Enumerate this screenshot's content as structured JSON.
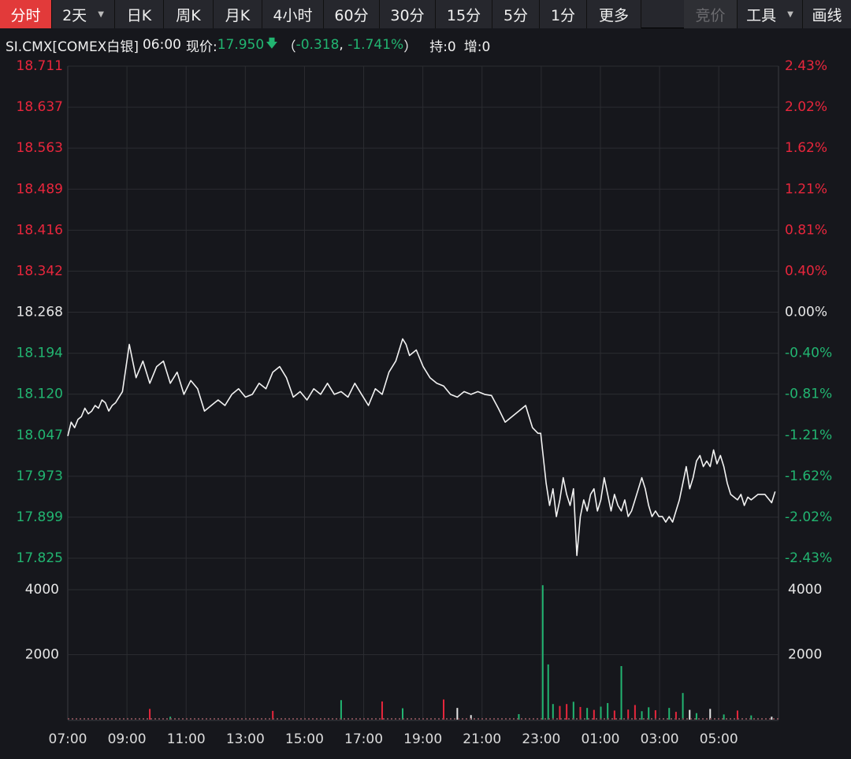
{
  "toolbar": {
    "tabs": [
      {
        "label": "分时",
        "active": true
      },
      {
        "label": "2天",
        "dropdown": true
      },
      {
        "label": "日K"
      },
      {
        "label": "周K"
      },
      {
        "label": "月K"
      },
      {
        "label": "4小时"
      },
      {
        "label": "60分"
      },
      {
        "label": "30分"
      },
      {
        "label": "15分"
      },
      {
        "label": "5分"
      },
      {
        "label": "1分"
      },
      {
        "label": "更多"
      }
    ],
    "right_tabs": [
      {
        "label": "竞价",
        "disabled": true
      },
      {
        "label": "工具",
        "dropdown": true
      },
      {
        "label": "画线"
      }
    ]
  },
  "quote": {
    "symbol": "SI.CMX[COMEX白银]",
    "time": "06:00",
    "price_label": "现价:",
    "price": "17.950",
    "arrow": "down-arrow-icon",
    "change": "-0.318",
    "change_pct": "-1.741%",
    "open_interest": "持:0",
    "increase": "增:0"
  },
  "colors": {
    "up": "#e8263c",
    "down": "#22b571",
    "neutral": "#e6e6e6",
    "line": "#f2f2f2",
    "grid": "#2b2c31",
    "background": "#16171c"
  },
  "chart_data": {
    "type": "line",
    "price_axis": {
      "left_ticks": [
        "18.711",
        "18.637",
        "18.563",
        "18.489",
        "18.416",
        "18.342",
        "18.268",
        "18.194",
        "18.120",
        "18.047",
        "17.973",
        "17.899",
        "17.825"
      ],
      "right_ticks": [
        "2.43%",
        "2.02%",
        "1.62%",
        "1.21%",
        "0.81%",
        "0.40%",
        "0.00%",
        "-0.40%",
        "-0.81%",
        "-1.21%",
        "-1.62%",
        "-2.02%",
        "-2.43%"
      ],
      "prev_close": 18.268,
      "ylim": [
        17.825,
        18.711
      ]
    },
    "volume_axis": {
      "ticks": [
        "4000",
        "2000"
      ],
      "ylim": [
        0,
        4800
      ]
    },
    "x_ticks": [
      "07:00",
      "09:00",
      "11:00",
      "13:00",
      "15:00",
      "17:00",
      "19:00",
      "21:00",
      "23:00",
      "01:00",
      "03:00",
      "05:00"
    ],
    "price_series": [
      [
        0,
        18.045
      ],
      [
        0.5,
        18.07
      ],
      [
        1,
        18.06
      ],
      [
        1.5,
        18.075
      ],
      [
        2,
        18.08
      ],
      [
        2.5,
        18.095
      ],
      [
        3,
        18.085
      ],
      [
        3.5,
        18.09
      ],
      [
        4,
        18.1
      ],
      [
        4.5,
        18.095
      ],
      [
        5,
        18.11
      ],
      [
        5.5,
        18.105
      ],
      [
        6,
        18.09
      ],
      [
        6.5,
        18.1
      ],
      [
        7,
        18.105
      ],
      [
        7.5,
        18.115
      ],
      [
        8,
        18.125
      ],
      [
        9,
        18.21
      ],
      [
        9.5,
        18.18
      ],
      [
        10,
        18.15
      ],
      [
        11,
        18.18
      ],
      [
        12,
        18.14
      ],
      [
        13,
        18.17
      ],
      [
        14,
        18.18
      ],
      [
        15,
        18.14
      ],
      [
        16,
        18.16
      ],
      [
        17,
        18.12
      ],
      [
        18,
        18.145
      ],
      [
        19,
        18.13
      ],
      [
        20,
        18.09
      ],
      [
        21,
        18.1
      ],
      [
        22,
        18.11
      ],
      [
        23,
        18.1
      ],
      [
        24,
        18.12
      ],
      [
        25,
        18.13
      ],
      [
        26,
        18.115
      ],
      [
        27,
        18.12
      ],
      [
        28,
        18.14
      ],
      [
        29,
        18.13
      ],
      [
        30,
        18.16
      ],
      [
        31,
        18.17
      ],
      [
        32,
        18.15
      ],
      [
        33,
        18.115
      ],
      [
        34,
        18.125
      ],
      [
        35,
        18.11
      ],
      [
        36,
        18.13
      ],
      [
        37,
        18.12
      ],
      [
        38,
        18.14
      ],
      [
        39,
        18.12
      ],
      [
        40,
        18.125
      ],
      [
        41,
        18.115
      ],
      [
        42,
        18.14
      ],
      [
        43,
        18.12
      ],
      [
        44,
        18.1
      ],
      [
        45,
        18.13
      ],
      [
        46,
        18.12
      ],
      [
        47,
        18.16
      ],
      [
        48,
        18.18
      ],
      [
        49,
        18.22
      ],
      [
        49.5,
        18.21
      ],
      [
        50,
        18.19
      ],
      [
        51,
        18.2
      ],
      [
        52,
        18.17
      ],
      [
        53,
        18.15
      ],
      [
        54,
        18.14
      ],
      [
        55,
        18.135
      ],
      [
        56,
        18.12
      ],
      [
        57,
        18.115
      ],
      [
        58,
        18.125
      ],
      [
        59,
        18.12
      ],
      [
        60,
        18.125
      ],
      [
        61,
        18.12
      ],
      [
        62,
        18.118
      ],
      [
        63,
        18.095
      ],
      [
        64,
        18.07
      ],
      [
        65,
        18.08
      ],
      [
        66,
        18.09
      ],
      [
        67,
        18.1
      ],
      [
        67.5,
        18.08
      ],
      [
        68,
        18.06
      ],
      [
        68.8,
        18.05
      ],
      [
        69.2,
        18.05
      ],
      [
        70,
        17.96
      ],
      [
        70.5,
        17.92
      ],
      [
        71,
        17.95
      ],
      [
        71.5,
        17.9
      ],
      [
        72,
        17.93
      ],
      [
        72.5,
        17.97
      ],
      [
        73,
        17.94
      ],
      [
        73.5,
        17.92
      ],
      [
        74,
        17.95
      ],
      [
        74.5,
        17.83
      ],
      [
        75,
        17.9
      ],
      [
        75.5,
        17.93
      ],
      [
        76,
        17.91
      ],
      [
        76.5,
        17.94
      ],
      [
        77,
        17.95
      ],
      [
        77.5,
        17.91
      ],
      [
        78,
        17.93
      ],
      [
        78.5,
        17.97
      ],
      [
        79,
        17.94
      ],
      [
        79.5,
        17.91
      ],
      [
        80,
        17.94
      ],
      [
        80.5,
        17.92
      ],
      [
        81,
        17.91
      ],
      [
        81.5,
        17.93
      ],
      [
        82,
        17.9
      ],
      [
        82.5,
        17.91
      ],
      [
        83,
        17.93
      ],
      [
        83.5,
        17.95
      ],
      [
        84,
        17.97
      ],
      [
        84.5,
        17.95
      ],
      [
        85,
        17.92
      ],
      [
        85.5,
        17.9
      ],
      [
        86,
        17.91
      ],
      [
        86.5,
        17.9
      ],
      [
        87,
        17.9
      ],
      [
        87.5,
        17.89
      ],
      [
        88,
        17.9
      ],
      [
        88.5,
        17.89
      ],
      [
        89,
        17.91
      ],
      [
        89.5,
        17.93
      ],
      [
        90,
        17.96
      ],
      [
        90.5,
        17.99
      ],
      [
        91,
        17.95
      ],
      [
        91.5,
        17.97
      ],
      [
        92,
        18.0
      ],
      [
        92.5,
        18.01
      ],
      [
        93,
        17.99
      ],
      [
        93.5,
        18.0
      ],
      [
        94,
        17.99
      ],
      [
        94.5,
        18.02
      ],
      [
        95,
        17.995
      ],
      [
        95.5,
        18.01
      ],
      [
        96,
        17.99
      ],
      [
        96.5,
        17.96
      ],
      [
        97,
        17.94
      ],
      [
        97.5,
        17.935
      ],
      [
        98,
        17.93
      ],
      [
        98.5,
        17.94
      ],
      [
        99,
        17.92
      ],
      [
        99.5,
        17.935
      ],
      [
        100,
        17.93
      ],
      [
        101,
        17.94
      ],
      [
        102,
        17.94
      ],
      [
        103,
        17.925
      ],
      [
        103.5,
        17.945
      ]
    ],
    "volume_bars": [
      {
        "t": 12,
        "v": 330,
        "dir": "up"
      },
      {
        "t": 15,
        "v": 90,
        "dir": "down"
      },
      {
        "t": 30,
        "v": 270,
        "dir": "up"
      },
      {
        "t": 40,
        "v": 600,
        "dir": "down"
      },
      {
        "t": 46,
        "v": 560,
        "dir": "up"
      },
      {
        "t": 49,
        "v": 350,
        "dir": "down"
      },
      {
        "t": 55,
        "v": 620,
        "dir": "up"
      },
      {
        "t": 57,
        "v": 360,
        "dir": "neutral"
      },
      {
        "t": 59,
        "v": 140,
        "dir": "neutral"
      },
      {
        "t": 66,
        "v": 170,
        "dir": "down"
      },
      {
        "t": 69.5,
        "v": 4140,
        "dir": "down"
      },
      {
        "t": 70.3,
        "v": 1700,
        "dir": "down"
      },
      {
        "t": 71,
        "v": 480,
        "dir": "down"
      },
      {
        "t": 72,
        "v": 420,
        "dir": "up"
      },
      {
        "t": 73,
        "v": 480,
        "dir": "up"
      },
      {
        "t": 74,
        "v": 550,
        "dir": "down"
      },
      {
        "t": 75,
        "v": 390,
        "dir": "up"
      },
      {
        "t": 76,
        "v": 360,
        "dir": "down"
      },
      {
        "t": 77,
        "v": 300,
        "dir": "up"
      },
      {
        "t": 78,
        "v": 400,
        "dir": "down"
      },
      {
        "t": 79,
        "v": 510,
        "dir": "down"
      },
      {
        "t": 80,
        "v": 280,
        "dir": "up"
      },
      {
        "t": 81,
        "v": 1650,
        "dir": "down"
      },
      {
        "t": 82,
        "v": 310,
        "dir": "up"
      },
      {
        "t": 83,
        "v": 450,
        "dir": "up"
      },
      {
        "t": 84,
        "v": 260,
        "dir": "down"
      },
      {
        "t": 85,
        "v": 380,
        "dir": "down"
      },
      {
        "t": 86,
        "v": 290,
        "dir": "up"
      },
      {
        "t": 88,
        "v": 360,
        "dir": "down"
      },
      {
        "t": 89,
        "v": 240,
        "dir": "up"
      },
      {
        "t": 90,
        "v": 820,
        "dir": "down"
      },
      {
        "t": 91,
        "v": 300,
        "dir": "neutral"
      },
      {
        "t": 92,
        "v": 200,
        "dir": "down"
      },
      {
        "t": 94,
        "v": 330,
        "dir": "neutral"
      },
      {
        "t": 96,
        "v": 160,
        "dir": "down"
      },
      {
        "t": 98,
        "v": 280,
        "dir": "up"
      },
      {
        "t": 100,
        "v": 130,
        "dir": "down"
      },
      {
        "t": 103,
        "v": 90,
        "dir": "neutral"
      }
    ]
  }
}
